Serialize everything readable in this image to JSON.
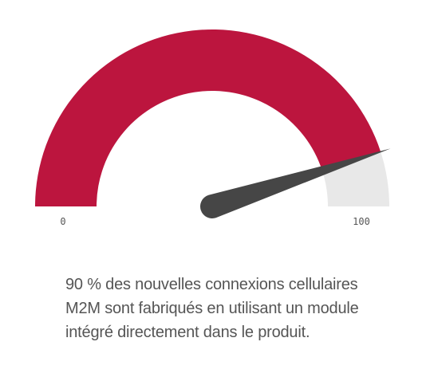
{
  "chart_data": {
    "type": "gauge",
    "value": 90,
    "min": 0,
    "max": 100,
    "tick_labels": [
      "0",
      "100"
    ],
    "fill_color": "#BC153E",
    "track_color": "#E8E8E8",
    "needle_color": "#464646"
  },
  "caption": {
    "lines": [
      "90 % des nouvelles connexions cellulaires",
      "M2M sont fabriqués en utilisant un module",
      "intégré directement dans le produit."
    ]
  }
}
